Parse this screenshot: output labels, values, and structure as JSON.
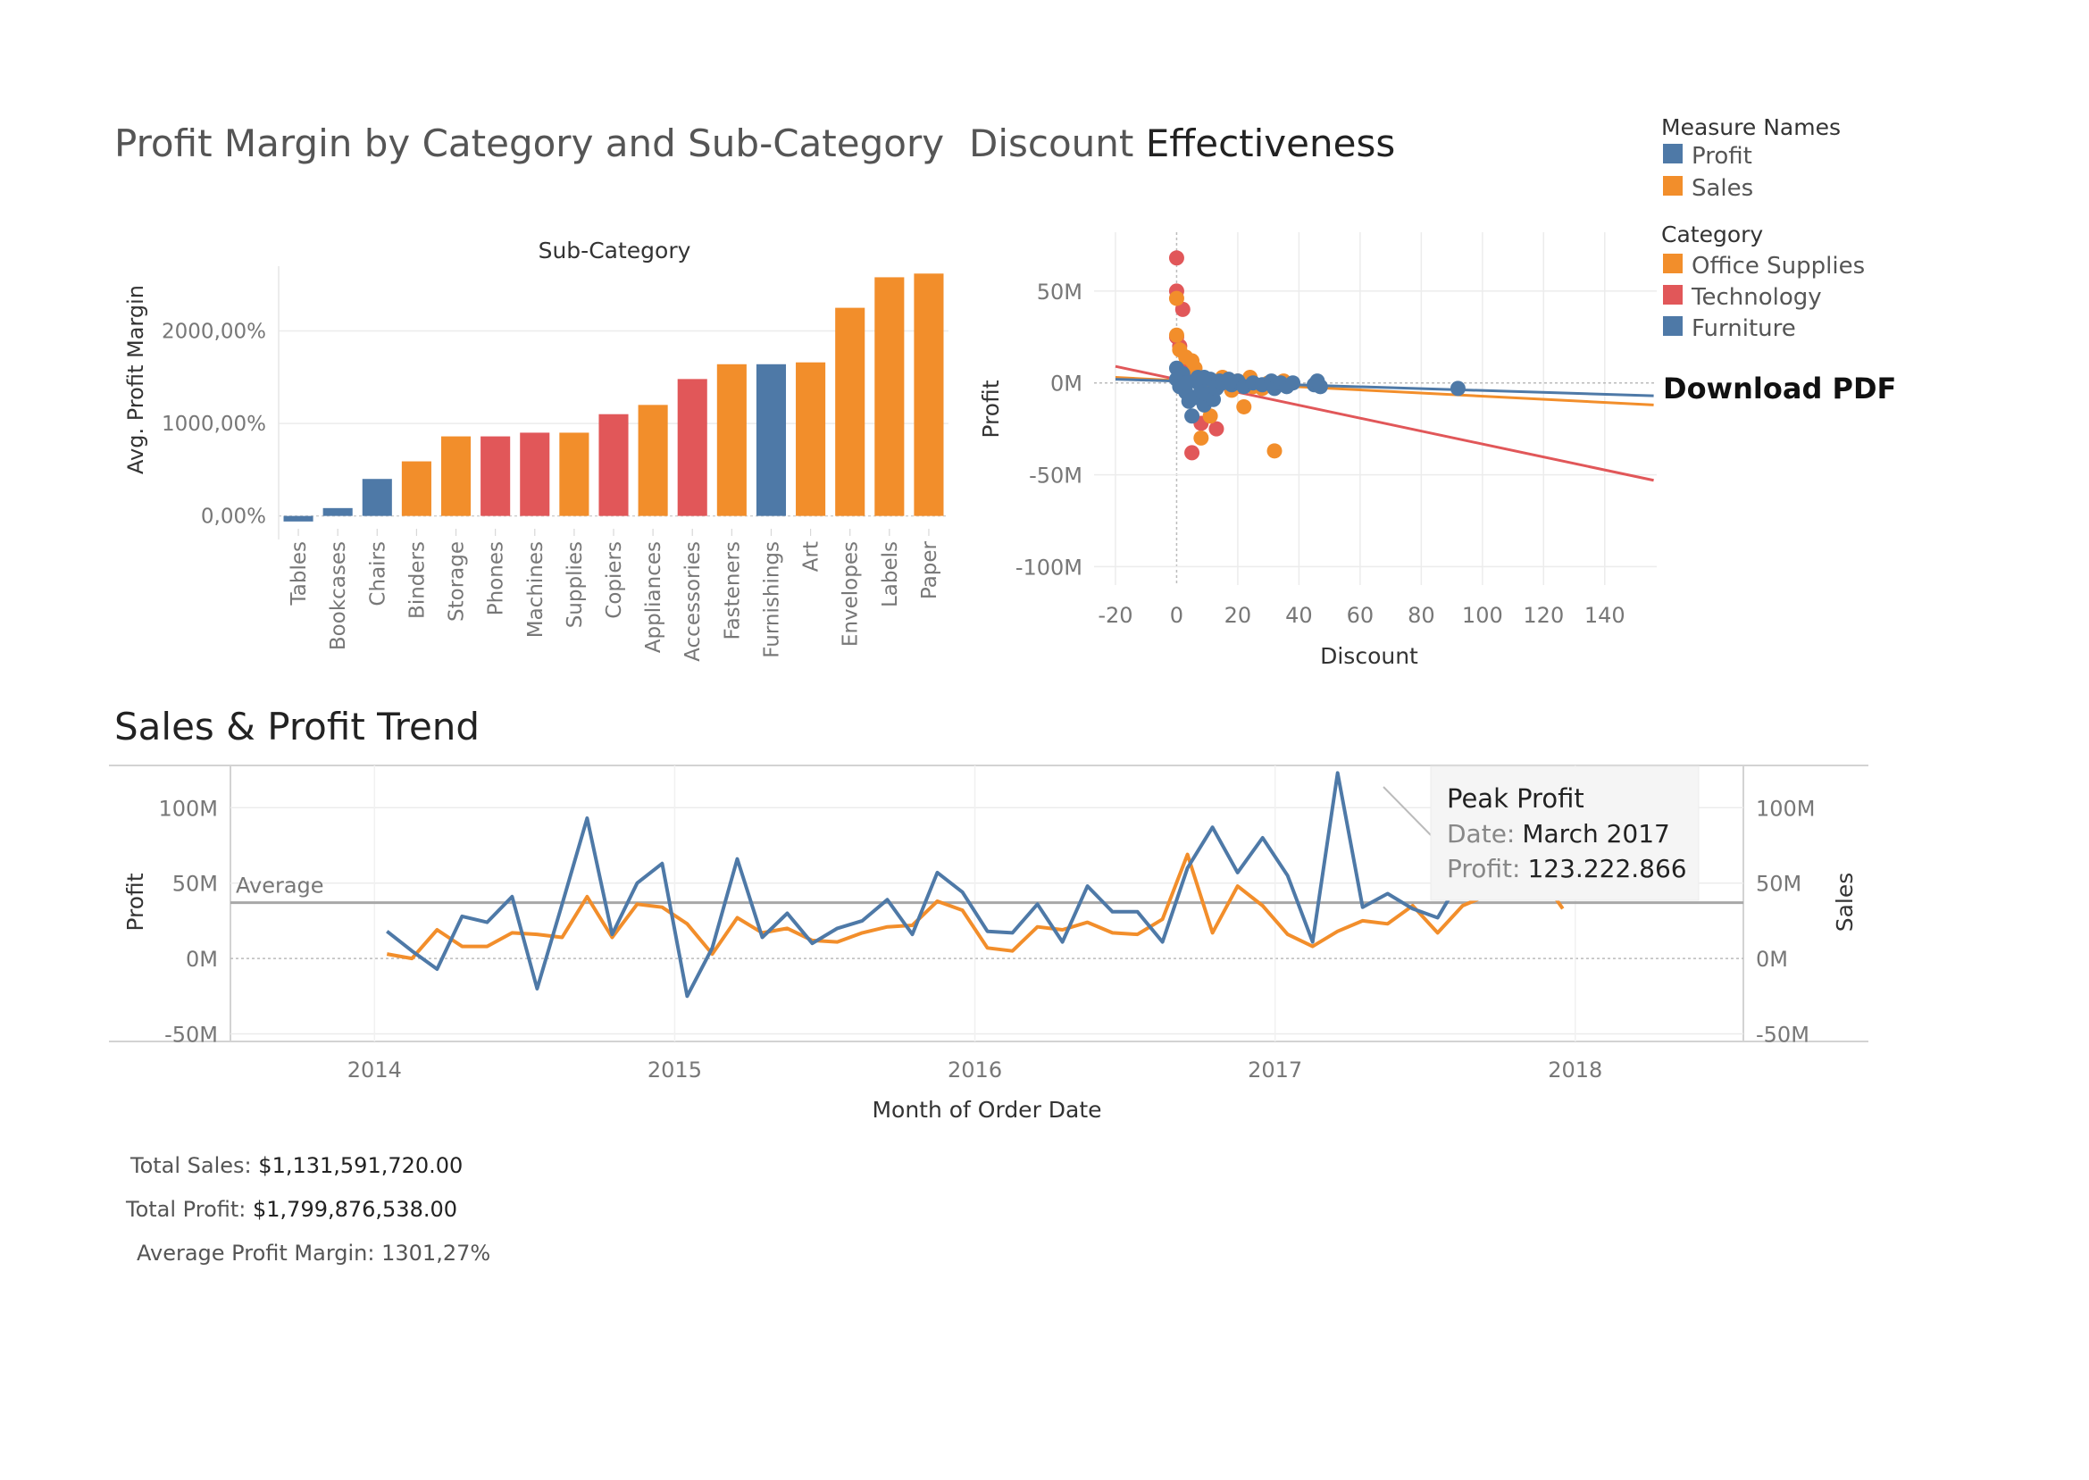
{
  "colors": {
    "blue": "#4e79a7",
    "orange": "#f28e2b",
    "red": "#e15759",
    "grid": "#ececec",
    "axis_text": "#777777",
    "title_text": "#333333"
  },
  "titles": {
    "bar_chart": "Profit Margin by Category and Sub-Category",
    "scatter_prefix": "Discount ",
    "scatter_emphasis": "Effectiveness",
    "line_chart": "Sales & Profit Trend"
  },
  "legend": {
    "measure_title": "Measure Names",
    "measures": [
      {
        "label": "Profit",
        "color": "#4e79a7"
      },
      {
        "label": "Sales",
        "color": "#f28e2b"
      }
    ],
    "category_title": "Category",
    "categories": [
      {
        "label": "Office Supplies",
        "color": "#f28e2b"
      },
      {
        "label": "Technology",
        "color": "#e15759"
      },
      {
        "label": "Furniture",
        "color": "#4e79a7"
      }
    ]
  },
  "download_label": "Download PDF",
  "summary": {
    "sales_label": "Total Sales:",
    "sales_value": "$1,131,591,720.00",
    "profit_label": "Total Profit:",
    "profit_value": "$1,799,876,538.00",
    "margin_label": "Average Profit Margin:",
    "margin_value": "1301,27%"
  },
  "chart_data": [
    {
      "type": "bar",
      "title": "Profit Margin by Category and Sub-Category",
      "column_header": "Sub-Category",
      "ylabel": "Avg. Profit Margin",
      "ylim": [
        -100,
        2700
      ],
      "yticks": [
        0,
        1000,
        2000
      ],
      "ytick_labels": [
        "0,00%",
        "1000,00%",
        "2000,00%"
      ],
      "categories": [
        "Tables",
        "Bookcases",
        "Chairs",
        "Binders",
        "Storage",
        "Phones",
        "Machines",
        "Supplies",
        "Copiers",
        "Appliances",
        "Accessories",
        "Fasteners",
        "Furnishings",
        "Art",
        "Envelopes",
        "Labels",
        "Paper"
      ],
      "values": [
        -60,
        85,
        400,
        590,
        860,
        860,
        900,
        900,
        1100,
        1200,
        1480,
        1640,
        1640,
        1660,
        2250,
        2580,
        2620
      ],
      "category_group": [
        "Furniture",
        "Furniture",
        "Furniture",
        "Office Supplies",
        "Office Supplies",
        "Technology",
        "Technology",
        "Office Supplies",
        "Technology",
        "Office Supplies",
        "Technology",
        "Office Supplies",
        "Furniture",
        "Office Supplies",
        "Office Supplies",
        "Office Supplies",
        "Office Supplies"
      ]
    },
    {
      "type": "scatter",
      "title": "Discount Effectiveness",
      "xlabel": "Discount",
      "ylabel": "Profit",
      "xlim": [
        -27,
        157
      ],
      "ylim": [
        -110,
        82
      ],
      "xticks": [
        -20,
        0,
        20,
        40,
        60,
        80,
        100,
        120,
        140
      ],
      "yticks": [
        50,
        0,
        -50,
        -100
      ],
      "ytick_labels": [
        "50M",
        "0M",
        "-50M",
        "-100M"
      ],
      "series": [
        {
          "name": "Technology",
          "points": [
            [
              0,
              68
            ],
            [
              0,
              50
            ],
            [
              2,
              40
            ],
            [
              0,
              25
            ],
            [
              1,
              20
            ],
            [
              3,
              10
            ],
            [
              5,
              -38
            ],
            [
              8,
              -22
            ],
            [
              13,
              -25
            ],
            [
              3,
              5
            ],
            [
              1,
              2
            ]
          ]
        },
        {
          "name": "Office Supplies",
          "points": [
            [
              0,
              46
            ],
            [
              0,
              26
            ],
            [
              1,
              18
            ],
            [
              3,
              14
            ],
            [
              5,
              12
            ],
            [
              8,
              -30
            ],
            [
              11,
              -18
            ],
            [
              22,
              -13
            ],
            [
              32,
              -37
            ],
            [
              25,
              -2
            ],
            [
              30,
              0
            ],
            [
              28,
              -3
            ],
            [
              18,
              -4
            ],
            [
              15,
              3
            ],
            [
              6,
              8
            ],
            [
              10,
              2
            ],
            [
              12,
              -2
            ],
            [
              20,
              1
            ],
            [
              24,
              3
            ],
            [
              35,
              1
            ]
          ]
        },
        {
          "name": "Furniture",
          "points": [
            [
              0,
              8
            ],
            [
              0,
              2
            ],
            [
              1,
              -2
            ],
            [
              2,
              5
            ],
            [
              3,
              -5
            ],
            [
              4,
              -10
            ],
            [
              5,
              -18
            ],
            [
              6,
              -8
            ],
            [
              7,
              3
            ],
            [
              8,
              -4
            ],
            [
              9,
              -12
            ],
            [
              10,
              -6
            ],
            [
              11,
              2
            ],
            [
              12,
              -9
            ],
            [
              13,
              -3
            ],
            [
              14,
              1
            ],
            [
              15,
              0
            ],
            [
              17,
              2
            ],
            [
              18,
              -1
            ],
            [
              20,
              1
            ],
            [
              22,
              -2
            ],
            [
              25,
              0
            ],
            [
              28,
              -1
            ],
            [
              31,
              1
            ],
            [
              32,
              -3
            ],
            [
              34,
              0
            ],
            [
              36,
              -2
            ],
            [
              38,
              0
            ],
            [
              45,
              -1
            ],
            [
              46,
              1
            ],
            [
              47,
              -2
            ],
            [
              92,
              -3
            ],
            [
              3,
              0
            ],
            [
              6,
              1
            ],
            [
              9,
              3
            ]
          ]
        }
      ],
      "trend_lines": [
        {
          "name": "Technology",
          "from": [
            -20,
            9
          ],
          "to": [
            156,
            -53
          ]
        },
        {
          "name": "Office Supplies",
          "from": [
            -20,
            3
          ],
          "to": [
            156,
            -12
          ]
        },
        {
          "name": "Furniture",
          "from": [
            -20,
            2
          ],
          "to": [
            156,
            -7
          ]
        }
      ]
    },
    {
      "type": "line",
      "title": "Sales & Profit Trend",
      "xlabel": "Month of Order Date",
      "ylabel": "Profit",
      "ylabel_right": "Sales",
      "ylim": [
        -55,
        128
      ],
      "yticks": [
        100,
        50,
        0,
        -50
      ],
      "ytick_labels": [
        "100M",
        "50M",
        "0M",
        "-50M"
      ],
      "xlim": [
        2013.52,
        2018.56
      ],
      "xticks": [
        2014,
        2015,
        2016,
        2017,
        2018
      ],
      "average_label": "Average",
      "average_value": 37,
      "series": [
        {
          "name": "Profit",
          "values": [
            18,
            5,
            -7,
            28,
            24,
            41,
            -20,
            36,
            93,
            16,
            50,
            63,
            -25,
            7,
            66,
            14,
            30,
            10,
            20,
            25,
            39,
            16,
            57,
            44,
            18,
            17,
            36,
            11,
            48,
            31,
            31,
            11,
            60,
            87,
            57,
            80,
            55,
            11,
            123,
            34,
            43,
            33,
            27,
            55,
            70,
            78,
            84,
            47
          ]
        },
        {
          "name": "Sales",
          "values": [
            3,
            0,
            19,
            8,
            8,
            17,
            16,
            14,
            41,
            14,
            36,
            34,
            23,
            3,
            27,
            17,
            20,
            12,
            11,
            17,
            21,
            22,
            38,
            32,
            7,
            5,
            21,
            19,
            24,
            17,
            16,
            26,
            69,
            17,
            48,
            35,
            16,
            8,
            18,
            25,
            23,
            35,
            17,
            35,
            42,
            41,
            57,
            33
          ]
        }
      ],
      "annotation": {
        "title": "Peak Profit",
        "date_label": "Date:",
        "date_value": "March 2017",
        "profit_label": "Profit:",
        "profit_value": "123.222.866"
      }
    }
  ]
}
